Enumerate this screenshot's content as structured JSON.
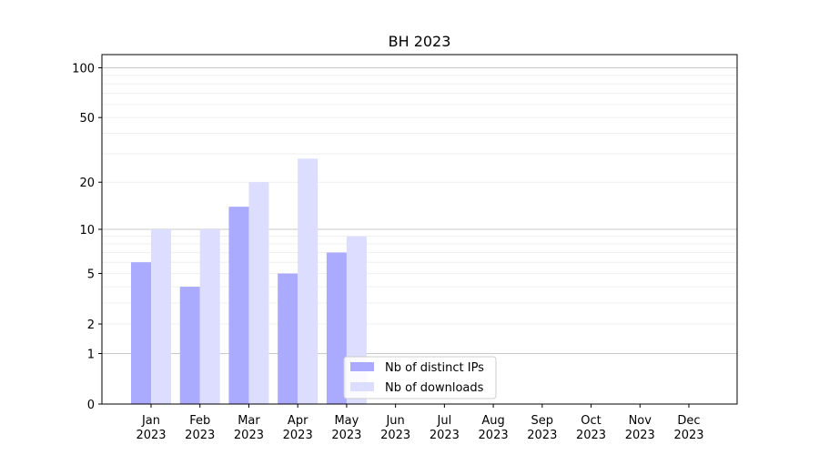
{
  "chart_data": {
    "type": "bar",
    "title": "BH 2023",
    "xlabel": "",
    "ylabel": "",
    "y_scale": "symlog",
    "ylim": [
      0,
      120
    ],
    "y_ticks": [
      0,
      1,
      2,
      5,
      10,
      20,
      50,
      100
    ],
    "categories": [
      "Jan\n2023",
      "Feb\n2023",
      "Mar\n2023",
      "Apr\n2023",
      "May\n2023",
      "Jun\n2023",
      "Jul\n2023",
      "Aug\n2023",
      "Sep\n2023",
      "Oct\n2023",
      "Nov\n2023",
      "Dec\n2023"
    ],
    "series": [
      {
        "name": "Nb of distinct IPs",
        "color": "#aaaaff",
        "values": [
          6,
          4,
          14,
          5,
          7,
          0,
          0,
          0,
          0,
          0,
          0,
          0
        ]
      },
      {
        "name": "Nb of downloads",
        "color": "#ddddff",
        "values": [
          10,
          10,
          20,
          28,
          9,
          0,
          0,
          0,
          0,
          0,
          0,
          0
        ]
      }
    ],
    "legend": "lower-center",
    "grid": true
  }
}
